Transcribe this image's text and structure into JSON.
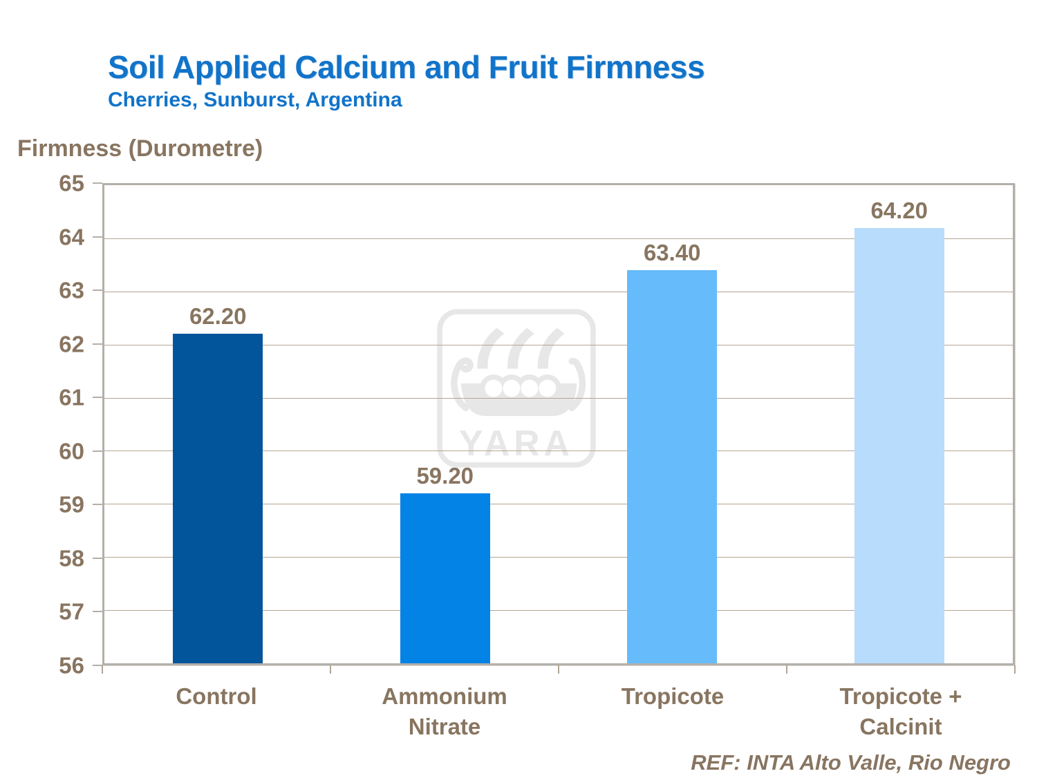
{
  "slide": {
    "title": "Soil Applied Calcium and Fruit Firmness",
    "subtitle": "Cherries, Sunburst, Argentina",
    "reference": "REF: INTA Alto Valle, Rio Negro"
  },
  "watermark": {
    "brand": "YARA"
  },
  "chart_data": {
    "type": "bar",
    "title": "Soil Applied Calcium and Fruit Firmness",
    "subtitle": "Cherries, Sunburst, Argentina",
    "xlabel": "",
    "ylabel": "Firmness (Durometre)",
    "categories": [
      "Control",
      "Ammonium Nitrate",
      "Tropicote",
      "Tropicote + Calcinit"
    ],
    "values": [
      62.2,
      59.2,
      63.4,
      64.2
    ],
    "value_labels": [
      "62.20",
      "59.20",
      "63.40",
      "64.20"
    ],
    "bar_colors": [
      "#02559b",
      "#0483e6",
      "#66bbfa",
      "#b8dcfb"
    ],
    "ylim": [
      56,
      65
    ],
    "ytick_interval": 1,
    "grid": true,
    "legend": false,
    "annotations": [
      "REF: INTA Alto Valle, Rio Negro"
    ]
  },
  "colors": {
    "title_blue": "#1173c9",
    "label_brown": "#887560",
    "gridline": "#b5a492",
    "plot_border": "#b3afa9",
    "watermark_gray": "#e7e7e7"
  }
}
